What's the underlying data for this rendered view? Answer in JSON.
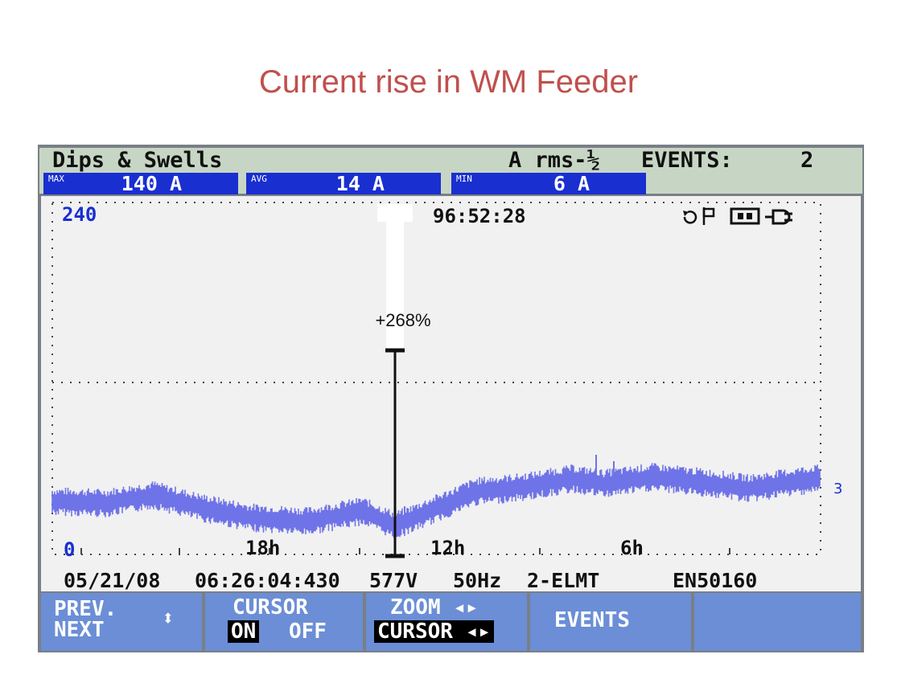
{
  "slide": {
    "title": "Current rise in WM Feeder"
  },
  "header": {
    "mode_title": "Dips & Swells",
    "unit_label": "A rms-½",
    "events_label": "EVENTS:",
    "events_count": "2",
    "stats": [
      {
        "tag": "MAX",
        "value": "140 A"
      },
      {
        "tag": "AVG",
        "value": "14 A"
      },
      {
        "tag": "MIN",
        "value": "6 A"
      }
    ]
  },
  "plot": {
    "y_top_label": "240",
    "y_bottom_label": "0",
    "timestamp": "96:52:28",
    "cursor_percent": "+268%",
    "channel_marker": "3",
    "status_icons": [
      "replay-icon",
      "flag-icon",
      "battery-icon",
      "plug-icon"
    ],
    "x_tick_labels": [
      "18h",
      "12h",
      "6h"
    ],
    "trace_color": "#6f73e8"
  },
  "info_bar": {
    "date": "05/21/08",
    "time": "06:26:04:430",
    "voltage": "577V",
    "frequency": "50Hz",
    "config": "2-ELMT",
    "standard": "EN50160"
  },
  "softkeys": {
    "prev_next": {
      "line1": "PREV.",
      "line2": "NEXT",
      "arrows": "⬍"
    },
    "cursor": {
      "line1": "CURSOR",
      "on": "ON",
      "off": "OFF"
    },
    "zoom": {
      "line1": "ZOOM ◂▸",
      "line2": "CURSOR ◂▸"
    },
    "events": {
      "label": "EVENTS"
    }
  }
}
